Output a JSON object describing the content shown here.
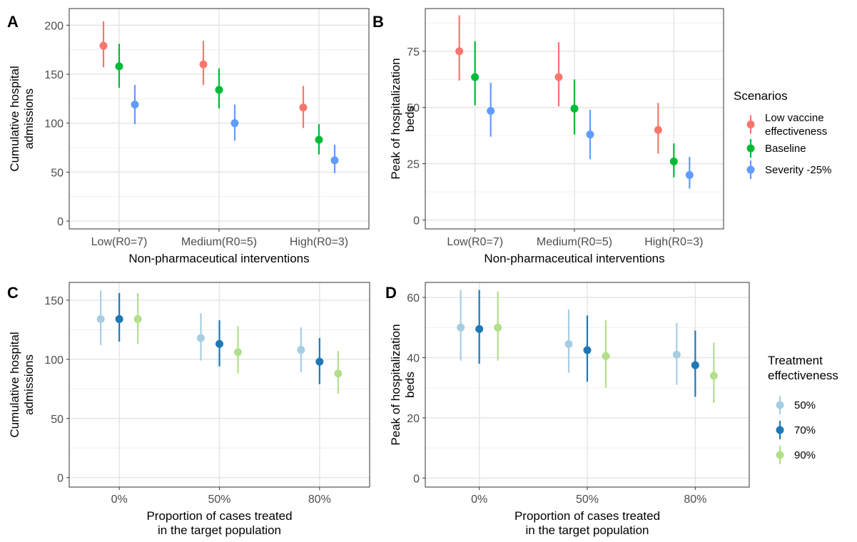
{
  "chart_data": [
    {
      "panel": "A",
      "type": "scatter",
      "subtype": "pointrange",
      "xlabel": "Non-pharmaceutical interventions",
      "ylabel": [
        "Cumulative hospital",
        "admissions"
      ],
      "categories": [
        "Low(R0=7)",
        "Medium(R0=5)",
        "High(R0=3)"
      ],
      "ylim": [
        -8,
        217
      ],
      "yticks": [
        0,
        50,
        100,
        150,
        200
      ],
      "series": [
        {
          "name": "Low vaccine effectiveness",
          "color": "#F8766D",
          "points": [
            {
              "y": 179,
              "lo": 157,
              "hi": 204
            },
            {
              "y": 160,
              "lo": 139,
              "hi": 184
            },
            {
              "y": 116,
              "lo": 95,
              "hi": 138
            }
          ]
        },
        {
          "name": "Baseline",
          "color": "#00BA38",
          "points": [
            {
              "y": 158,
              "lo": 136,
              "hi": 181
            },
            {
              "y": 134,
              "lo": 115,
              "hi": 156
            },
            {
              "y": 83,
              "lo": 68,
              "hi": 99
            }
          ]
        },
        {
          "name": "Severity -25%",
          "color": "#619CFF",
          "points": [
            {
              "y": 119,
              "lo": 99,
              "hi": 139
            },
            {
              "y": 100,
              "lo": 82,
              "hi": 119
            },
            {
              "y": 62,
              "lo": 49,
              "hi": 78
            }
          ]
        }
      ]
    },
    {
      "panel": "B",
      "type": "scatter",
      "subtype": "pointrange",
      "xlabel": "Non-pharmaceutical interventions",
      "ylabel": [
        "Peak of hospitalization",
        "beds"
      ],
      "categories": [
        "Low(R0=7)",
        "Medium(R0=5)",
        "High(R0=3)"
      ],
      "ylim": [
        -4,
        94
      ],
      "yticks": [
        0,
        25,
        50,
        75
      ],
      "series": [
        {
          "name": "Low vaccine effectiveness",
          "color": "#F8766D",
          "points": [
            {
              "y": 75,
              "lo": 62,
              "hi": 91
            },
            {
              "y": 63.5,
              "lo": 50.5,
              "hi": 79
            },
            {
              "y": 40,
              "lo": 29.5,
              "hi": 52
            }
          ]
        },
        {
          "name": "Baseline",
          "color": "#00BA38",
          "points": [
            {
              "y": 63.5,
              "lo": 51,
              "hi": 79.5
            },
            {
              "y": 49.5,
              "lo": 38,
              "hi": 62.5
            },
            {
              "y": 26,
              "lo": 19,
              "hi": 34
            }
          ]
        },
        {
          "name": "Severity -25%",
          "color": "#619CFF",
          "points": [
            {
              "y": 48.5,
              "lo": 37,
              "hi": 61
            },
            {
              "y": 38,
              "lo": 27,
              "hi": 49
            },
            {
              "y": 20,
              "lo": 14,
              "hi": 28
            }
          ]
        }
      ]
    },
    {
      "panel": "C",
      "type": "scatter",
      "subtype": "pointrange",
      "xlabel": [
        "Proportion of cases treated",
        "in the target population"
      ],
      "ylabel": [
        "Cumulative hospital",
        "admissions"
      ],
      "categories": [
        "0%",
        "50%",
        "80%"
      ],
      "ylim": [
        -8,
        165
      ],
      "yticks": [
        0,
        50,
        100,
        150
      ],
      "series": [
        {
          "name": "50%",
          "color": "#A6CEE3",
          "points": [
            {
              "y": 134,
              "lo": 112,
              "hi": 158
            },
            {
              "y": 118,
              "lo": 99,
              "hi": 139
            },
            {
              "y": 108,
              "lo": 89,
              "hi": 127
            }
          ]
        },
        {
          "name": "70%",
          "color": "#1F78B4",
          "points": [
            {
              "y": 134,
              "lo": 115,
              "hi": 156
            },
            {
              "y": 113,
              "lo": 94,
              "hi": 133
            },
            {
              "y": 98,
              "lo": 79,
              "hi": 118
            }
          ]
        },
        {
          "name": "90%",
          "color": "#B2DF8A",
          "points": [
            {
              "y": 134,
              "lo": 113,
              "hi": 156
            },
            {
              "y": 106,
              "lo": 88,
              "hi": 128
            },
            {
              "y": 88,
              "lo": 71,
              "hi": 107
            }
          ]
        }
      ]
    },
    {
      "panel": "D",
      "type": "scatter",
      "subtype": "pointrange",
      "xlabel": [
        "Proportion of cases treated",
        "in the target population"
      ],
      "ylabel": [
        "Peak of hospitalization",
        "beds"
      ],
      "categories": [
        "0%",
        "50%",
        "80%"
      ],
      "ylim": [
        -3,
        65
      ],
      "yticks": [
        0,
        20,
        40,
        60
      ],
      "series": [
        {
          "name": "50%",
          "color": "#A6CEE3",
          "points": [
            {
              "y": 50,
              "lo": 39,
              "hi": 62.5
            },
            {
              "y": 44.5,
              "lo": 35,
              "hi": 56
            },
            {
              "y": 41,
              "lo": 31,
              "hi": 51.5
            }
          ]
        },
        {
          "name": "70%",
          "color": "#1F78B4",
          "points": [
            {
              "y": 49.5,
              "lo": 38,
              "hi": 62.5
            },
            {
              "y": 42.5,
              "lo": 32,
              "hi": 54
            },
            {
              "y": 37.5,
              "lo": 27,
              "hi": 49
            }
          ]
        },
        {
          "name": "90%",
          "color": "#B2DF8A",
          "points": [
            {
              "y": 50,
              "lo": 39,
              "hi": 62
            },
            {
              "y": 40.5,
              "lo": 30,
              "hi": 52.5
            },
            {
              "y": 34,
              "lo": 25,
              "hi": 45
            }
          ]
        }
      ]
    }
  ],
  "legends": {
    "scenarios": {
      "title": "Scenarios",
      "items": [
        {
          "label": [
            "Low vaccine",
            "effectiveness"
          ],
          "color": "#F8766D"
        },
        {
          "label": [
            "Baseline"
          ],
          "color": "#00BA38"
        },
        {
          "label": [
            "Severity -25%"
          ],
          "color": "#619CFF"
        }
      ]
    },
    "treatment": {
      "title": [
        "Treatment",
        "effectiveness"
      ],
      "items": [
        {
          "label": [
            "50%"
          ],
          "color": "#A6CEE3"
        },
        {
          "label": [
            "70%"
          ],
          "color": "#1F78B4"
        },
        {
          "label": [
            "90%"
          ],
          "color": "#B2DF8A"
        }
      ]
    }
  }
}
